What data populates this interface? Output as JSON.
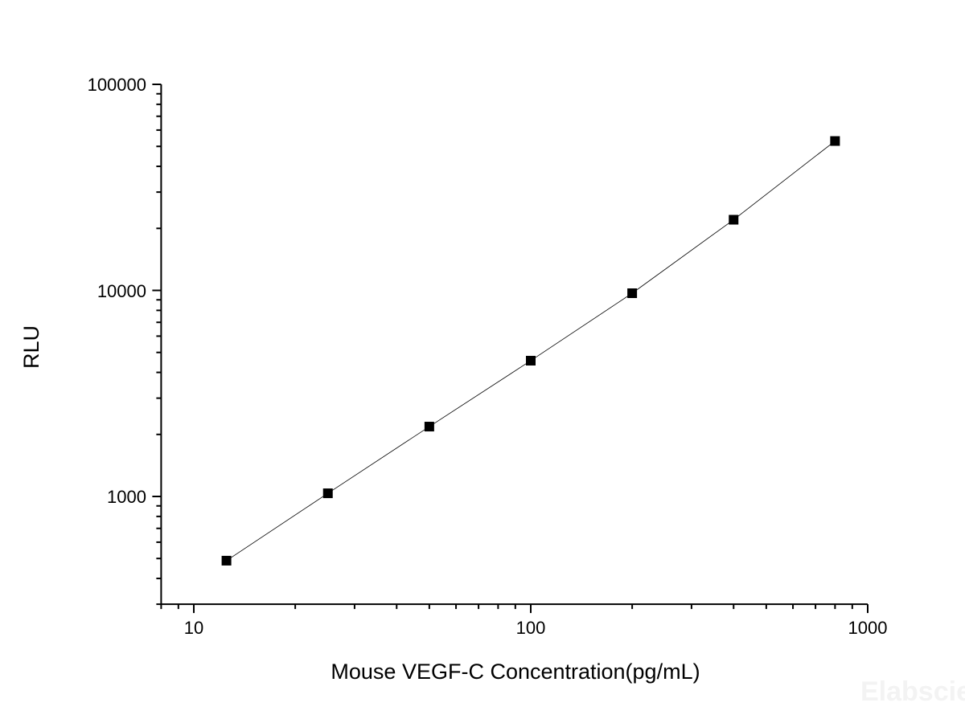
{
  "chart_data": {
    "type": "line",
    "title": "",
    "xlabel": "Mouse VEGF-C Concentration(pg/mL)",
    "ylabel": "RLU",
    "x_scale": "log",
    "y_scale": "log",
    "xlim": [
      8,
      1000
    ],
    "ylim": [
      300,
      100000
    ],
    "x_ticks": [
      "10",
      "100",
      "1000"
    ],
    "y_ticks": [
      "1000",
      "10000",
      "100000"
    ],
    "grid": false,
    "marker": "square",
    "color": "#000000",
    "series": [
      {
        "x": [
          12.5,
          25,
          50,
          100,
          200,
          400,
          800
        ],
        "y": [
          488,
          1036,
          2183,
          4560,
          9690,
          22030,
          53090
        ]
      }
    ],
    "watermark": "Elabscience"
  }
}
